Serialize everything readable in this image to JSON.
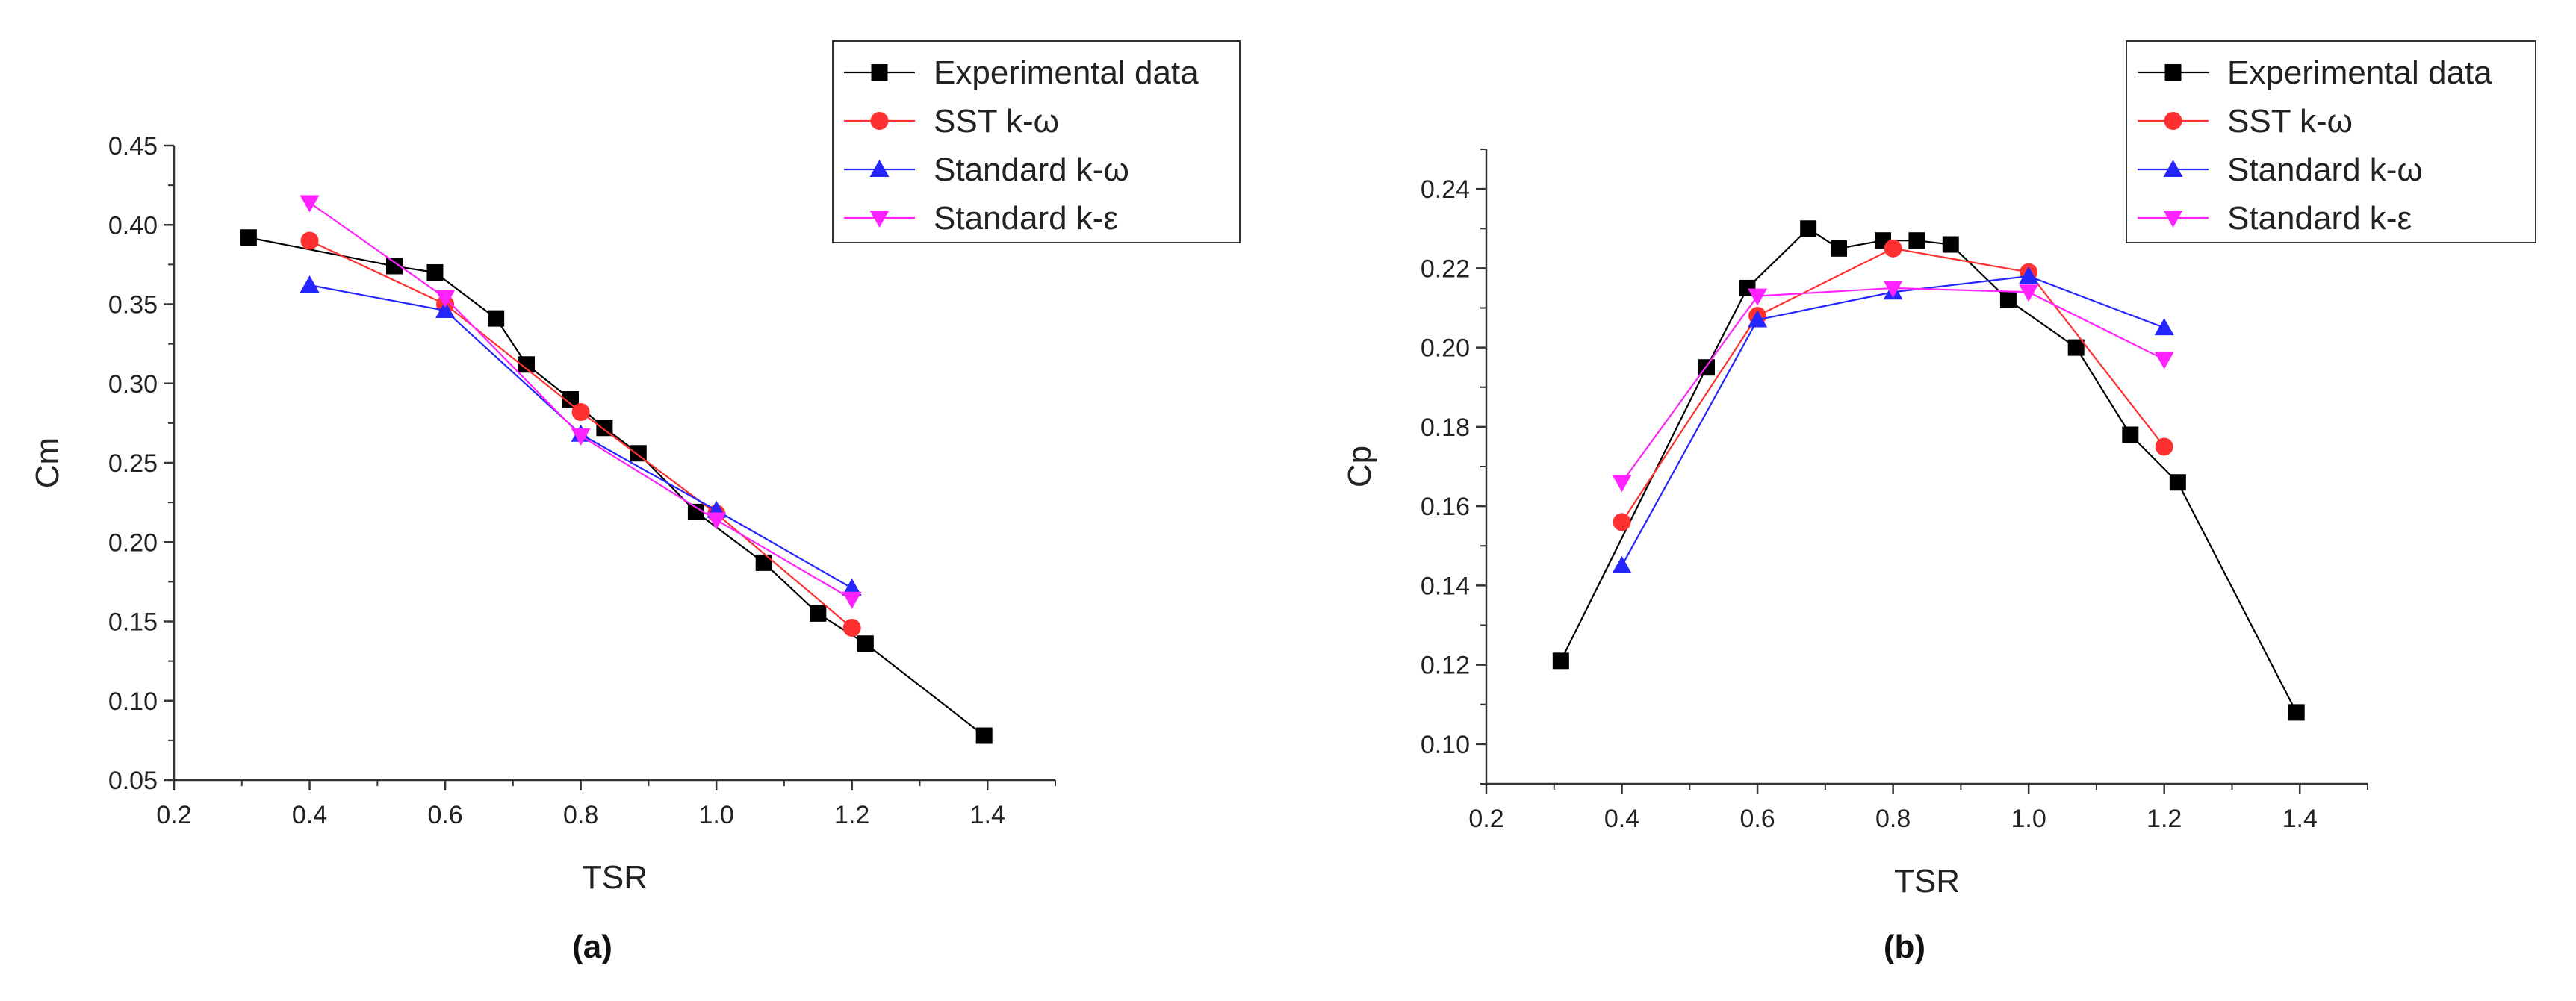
{
  "chart_data": [
    {
      "type": "line",
      "caption": "(a)",
      "xlabel": "TSR",
      "ylabel": "Cm",
      "xlim": [
        0.2,
        1.5
      ],
      "ylim": [
        0.05,
        0.45
      ],
      "xticks": [
        0.2,
        0.4,
        0.6,
        0.8,
        1.0,
        1.2,
        1.4
      ],
      "yticks": [
        0.05,
        0.1,
        0.15,
        0.2,
        0.25,
        0.3,
        0.35,
        0.4,
        0.45
      ],
      "legend_position": "top-right",
      "series": [
        {
          "name": "Experimental data",
          "color": "#000000",
          "marker": "square",
          "x": [
            0.31,
            0.525,
            0.585,
            0.675,
            0.72,
            0.785,
            0.835,
            0.885,
            0.97,
            1.07,
            1.15,
            1.22,
            1.395
          ],
          "y": [
            0.392,
            0.374,
            0.37,
            0.341,
            0.312,
            0.29,
            0.272,
            0.256,
            0.219,
            0.187,
            0.155,
            0.136,
            0.078
          ]
        },
        {
          "name": "SST k-ω",
          "color": "#ff3030",
          "marker": "circle",
          "x": [
            0.4,
            0.6,
            0.8,
            1.0,
            1.2
          ],
          "y": [
            0.39,
            0.35,
            0.282,
            0.218,
            0.146
          ]
        },
        {
          "name": "Standard k-ω",
          "color": "#2525ff",
          "marker": "triangle-up",
          "x": [
            0.4,
            0.6,
            0.8,
            1.0,
            1.2
          ],
          "y": [
            0.362,
            0.346,
            0.268,
            0.22,
            0.171
          ]
        },
        {
          "name": "Standard k-ε",
          "color": "#ff22ff",
          "marker": "triangle-down",
          "x": [
            0.4,
            0.6,
            0.8,
            1.0,
            1.2
          ],
          "y": [
            0.414,
            0.354,
            0.267,
            0.214,
            0.164
          ]
        }
      ]
    },
    {
      "type": "line",
      "caption": "(b)",
      "xlabel": "TSR",
      "ylabel": "Cp",
      "xlim": [
        0.2,
        1.5
      ],
      "ylim": [
        0.09,
        0.25
      ],
      "xticks": [
        0.2,
        0.4,
        0.6,
        0.8,
        1.0,
        1.2,
        1.4
      ],
      "yticks": [
        0.1,
        0.12,
        0.14,
        0.16,
        0.18,
        0.2,
        0.22,
        0.24
      ],
      "legend_position": "top-right",
      "series": [
        {
          "name": "Experimental data",
          "color": "#000000",
          "marker": "square",
          "x": [
            0.31,
            0.525,
            0.585,
            0.675,
            0.72,
            0.785,
            0.835,
            0.885,
            0.97,
            1.07,
            1.15,
            1.22,
            1.395
          ],
          "y": [
            0.121,
            0.195,
            0.215,
            0.23,
            0.225,
            0.227,
            0.227,
            0.226,
            0.212,
            0.2,
            0.178,
            0.166,
            0.108
          ]
        },
        {
          "name": "SST k-ω",
          "color": "#ff3030",
          "marker": "circle",
          "x": [
            0.4,
            0.6,
            0.8,
            1.0,
            1.2
          ],
          "y": [
            0.156,
            0.208,
            0.225,
            0.219,
            0.175
          ]
        },
        {
          "name": "Standard k-ω",
          "color": "#2525ff",
          "marker": "triangle-up",
          "x": [
            0.4,
            0.6,
            0.8,
            1.0,
            1.2
          ],
          "y": [
            0.145,
            0.207,
            0.214,
            0.218,
            0.205
          ]
        },
        {
          "name": "Standard k-ε",
          "color": "#ff22ff",
          "marker": "triangle-down",
          "x": [
            0.4,
            0.6,
            0.8,
            1.0,
            1.2
          ],
          "y": [
            0.166,
            0.213,
            0.215,
            0.214,
            0.197
          ]
        }
      ]
    }
  ]
}
